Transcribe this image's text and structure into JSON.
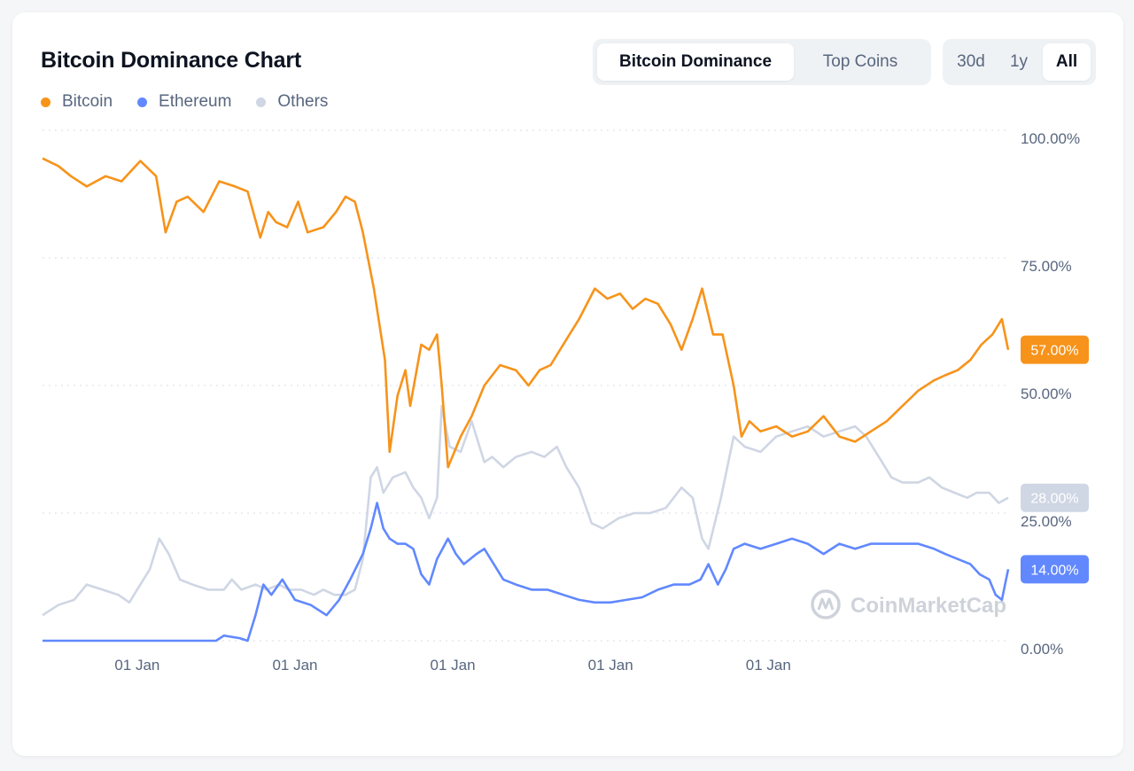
{
  "header": {
    "title": "Bitcoin Dominance Chart",
    "tabs": [
      {
        "label": "Bitcoin Dominance",
        "active": true
      },
      {
        "label": "Top Coins",
        "active": false
      }
    ],
    "ranges": [
      {
        "label": "30d",
        "active": false
      },
      {
        "label": "1y",
        "active": false
      },
      {
        "label": "All",
        "active": true
      }
    ]
  },
  "watermark": "CoinMarketCap",
  "chart_data": {
    "type": "line",
    "title": "Bitcoin Dominance Chart",
    "ylim": [
      0,
      100
    ],
    "y_ticks": [
      "100.00%",
      "75.00%",
      "50.00%",
      "25.00%",
      "0.00%"
    ],
    "x_ticks": [
      {
        "label": "01 Jan",
        "x": 2.6
      },
      {
        "label": "01 Jan",
        "x": 3.6
      },
      {
        "label": "01 Jan",
        "x": 4.6
      },
      {
        "label": "01 Jan",
        "x": 5.6
      },
      {
        "label": "01 Jan",
        "x": 6.6
      }
    ],
    "xlim": [
      2.0,
      8.12
    ],
    "grid": true,
    "legend": "top-left",
    "series": [
      {
        "name": "Bitcoin",
        "color": "#f7931a",
        "last_label": "57.00%",
        "points": [
          [
            2.0,
            94.5
          ],
          [
            2.1,
            93
          ],
          [
            2.18,
            91
          ],
          [
            2.28,
            89
          ],
          [
            2.4,
            91
          ],
          [
            2.5,
            90
          ],
          [
            2.62,
            94
          ],
          [
            2.72,
            91
          ],
          [
            2.78,
            80
          ],
          [
            2.85,
            86
          ],
          [
            2.92,
            87
          ],
          [
            3.02,
            84
          ],
          [
            3.12,
            90
          ],
          [
            3.22,
            89
          ],
          [
            3.3,
            88
          ],
          [
            3.38,
            79
          ],
          [
            3.43,
            84
          ],
          [
            3.48,
            82
          ],
          [
            3.55,
            81
          ],
          [
            3.62,
            86
          ],
          [
            3.68,
            80
          ],
          [
            3.78,
            81
          ],
          [
            3.86,
            84
          ],
          [
            3.92,
            87
          ],
          [
            3.98,
            86
          ],
          [
            4.03,
            80
          ],
          [
            4.1,
            69
          ],
          [
            4.17,
            55
          ],
          [
            4.2,
            37
          ],
          [
            4.25,
            48
          ],
          [
            4.3,
            53
          ],
          [
            4.33,
            46
          ],
          [
            4.4,
            58
          ],
          [
            4.45,
            57
          ],
          [
            4.5,
            60
          ],
          [
            4.53,
            50
          ],
          [
            4.57,
            34
          ],
          [
            4.65,
            40
          ],
          [
            4.72,
            44
          ],
          [
            4.8,
            50
          ],
          [
            4.9,
            54
          ],
          [
            5.0,
            53
          ],
          [
            5.08,
            50
          ],
          [
            5.15,
            53
          ],
          [
            5.22,
            54
          ],
          [
            5.3,
            58
          ],
          [
            5.4,
            63
          ],
          [
            5.5,
            69
          ],
          [
            5.58,
            67
          ],
          [
            5.66,
            68
          ],
          [
            5.74,
            65
          ],
          [
            5.82,
            67
          ],
          [
            5.9,
            66
          ],
          [
            5.98,
            62
          ],
          [
            6.05,
            57
          ],
          [
            6.12,
            63
          ],
          [
            6.18,
            69
          ],
          [
            6.25,
            60
          ],
          [
            6.31,
            60
          ],
          [
            6.38,
            50
          ],
          [
            6.43,
            40
          ],
          [
            6.48,
            43
          ],
          [
            6.55,
            41
          ],
          [
            6.65,
            42
          ],
          [
            6.75,
            40
          ],
          [
            6.85,
            41
          ],
          [
            6.95,
            44
          ],
          [
            7.05,
            40
          ],
          [
            7.15,
            39
          ],
          [
            7.25,
            41
          ],
          [
            7.35,
            43
          ],
          [
            7.45,
            46
          ],
          [
            7.55,
            49
          ],
          [
            7.65,
            51
          ],
          [
            7.72,
            52
          ],
          [
            7.8,
            53
          ],
          [
            7.88,
            55
          ],
          [
            7.95,
            58
          ],
          [
            8.02,
            60
          ],
          [
            8.08,
            63
          ],
          [
            8.12,
            57
          ]
        ]
      },
      {
        "name": "Ethereum",
        "color": "#6188ff",
        "last_label": "14.00%",
        "points": [
          [
            2.0,
            0
          ],
          [
            2.5,
            0
          ],
          [
            3.1,
            0
          ],
          [
            3.15,
            1
          ],
          [
            3.25,
            0.5
          ],
          [
            3.3,
            0
          ],
          [
            3.35,
            5
          ],
          [
            3.4,
            11
          ],
          [
            3.45,
            9
          ],
          [
            3.52,
            12
          ],
          [
            3.6,
            8
          ],
          [
            3.7,
            7
          ],
          [
            3.8,
            5
          ],
          [
            3.88,
            8
          ],
          [
            3.95,
            12
          ],
          [
            4.03,
            17
          ],
          [
            4.08,
            22
          ],
          [
            4.12,
            27
          ],
          [
            4.16,
            22
          ],
          [
            4.2,
            20
          ],
          [
            4.25,
            19
          ],
          [
            4.3,
            19
          ],
          [
            4.35,
            18
          ],
          [
            4.4,
            13
          ],
          [
            4.45,
            11
          ],
          [
            4.5,
            16
          ],
          [
            4.57,
            20
          ],
          [
            4.62,
            17
          ],
          [
            4.67,
            15
          ],
          [
            4.75,
            17
          ],
          [
            4.8,
            18
          ],
          [
            4.86,
            15
          ],
          [
            4.92,
            12
          ],
          [
            5.0,
            11
          ],
          [
            5.1,
            10
          ],
          [
            5.2,
            10
          ],
          [
            5.3,
            9
          ],
          [
            5.4,
            8
          ],
          [
            5.5,
            7.5
          ],
          [
            5.6,
            7.5
          ],
          [
            5.7,
            8
          ],
          [
            5.8,
            8.5
          ],
          [
            5.9,
            10
          ],
          [
            6.0,
            11
          ],
          [
            6.1,
            11
          ],
          [
            6.17,
            12
          ],
          [
            6.22,
            15
          ],
          [
            6.28,
            11
          ],
          [
            6.33,
            14
          ],
          [
            6.38,
            18
          ],
          [
            6.45,
            19
          ],
          [
            6.55,
            18
          ],
          [
            6.65,
            19
          ],
          [
            6.75,
            20
          ],
          [
            6.85,
            19
          ],
          [
            6.95,
            17
          ],
          [
            7.05,
            19
          ],
          [
            7.15,
            18
          ],
          [
            7.25,
            19
          ],
          [
            7.35,
            19
          ],
          [
            7.45,
            19
          ],
          [
            7.55,
            19
          ],
          [
            7.65,
            18
          ],
          [
            7.72,
            17
          ],
          [
            7.8,
            16
          ],
          [
            7.88,
            15
          ],
          [
            7.94,
            13
          ],
          [
            8.0,
            12
          ],
          [
            8.04,
            9
          ],
          [
            8.08,
            8
          ],
          [
            8.1,
            11
          ],
          [
            8.12,
            14
          ]
        ]
      },
      {
        "name": "Others",
        "color": "#cfd6e4",
        "last_label": "28.00%",
        "points": [
          [
            2.0,
            5
          ],
          [
            2.1,
            7
          ],
          [
            2.2,
            8
          ],
          [
            2.28,
            11
          ],
          [
            2.38,
            10
          ],
          [
            2.48,
            9
          ],
          [
            2.55,
            7.5
          ],
          [
            2.62,
            11
          ],
          [
            2.68,
            14
          ],
          [
            2.74,
            20
          ],
          [
            2.8,
            17
          ],
          [
            2.87,
            12
          ],
          [
            2.95,
            11
          ],
          [
            3.05,
            10
          ],
          [
            3.15,
            10
          ],
          [
            3.2,
            12
          ],
          [
            3.26,
            10
          ],
          [
            3.35,
            11
          ],
          [
            3.42,
            10
          ],
          [
            3.5,
            11
          ],
          [
            3.56,
            10
          ],
          [
            3.64,
            10
          ],
          [
            3.72,
            9
          ],
          [
            3.78,
            10
          ],
          [
            3.85,
            9
          ],
          [
            3.92,
            9
          ],
          [
            3.98,
            10
          ],
          [
            4.03,
            16
          ],
          [
            4.08,
            32
          ],
          [
            4.12,
            34
          ],
          [
            4.16,
            29
          ],
          [
            4.22,
            32
          ],
          [
            4.3,
            33
          ],
          [
            4.35,
            30
          ],
          [
            4.4,
            28
          ],
          [
            4.45,
            24
          ],
          [
            4.5,
            28
          ],
          [
            4.53,
            46
          ],
          [
            4.58,
            38
          ],
          [
            4.65,
            37
          ],
          [
            4.72,
            43
          ],
          [
            4.8,
            35
          ],
          [
            4.85,
            36
          ],
          [
            4.92,
            34
          ],
          [
            5.0,
            36
          ],
          [
            5.1,
            37
          ],
          [
            5.18,
            36
          ],
          [
            5.26,
            38
          ],
          [
            5.32,
            34
          ],
          [
            5.4,
            30
          ],
          [
            5.48,
            23
          ],
          [
            5.55,
            22
          ],
          [
            5.65,
            24
          ],
          [
            5.75,
            25
          ],
          [
            5.85,
            25
          ],
          [
            5.95,
            26
          ],
          [
            6.05,
            30
          ],
          [
            6.12,
            28
          ],
          [
            6.18,
            20
          ],
          [
            6.22,
            18
          ],
          [
            6.3,
            28
          ],
          [
            6.38,
            40
          ],
          [
            6.45,
            38
          ],
          [
            6.55,
            37
          ],
          [
            6.65,
            40
          ],
          [
            6.75,
            41
          ],
          [
            6.85,
            42
          ],
          [
            6.95,
            40
          ],
          [
            7.05,
            41
          ],
          [
            7.15,
            42
          ],
          [
            7.22,
            40
          ],
          [
            7.3,
            36
          ],
          [
            7.38,
            32
          ],
          [
            7.45,
            31
          ],
          [
            7.55,
            31
          ],
          [
            7.62,
            32
          ],
          [
            7.7,
            30
          ],
          [
            7.78,
            29
          ],
          [
            7.86,
            28
          ],
          [
            7.92,
            29
          ],
          [
            8.0,
            29
          ],
          [
            8.06,
            27
          ],
          [
            8.12,
            28
          ]
        ]
      }
    ]
  }
}
